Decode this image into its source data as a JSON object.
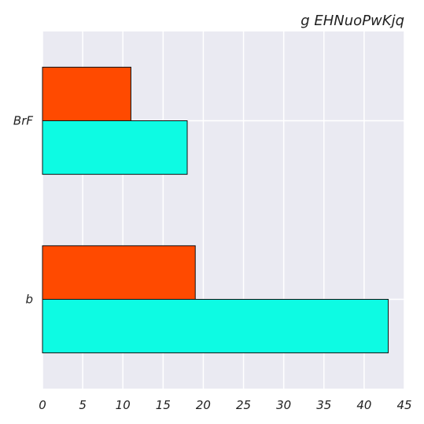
{
  "chart_data": {
    "type": "bar",
    "orientation": "horizontal",
    "title": "g EHNuoPwKjq",
    "xlabel": "",
    "ylabel": "",
    "categories": [
      "BrF",
      "b"
    ],
    "series": [
      {
        "values": [
          11,
          19
        ],
        "color": "#ff4a00"
      },
      {
        "values": [
          18,
          43
        ],
        "color": "#0dfbe3"
      }
    ],
    "xlim": [
      0,
      45
    ],
    "xticks": [
      0,
      5,
      10,
      15,
      20,
      25,
      30,
      35,
      40,
      45
    ],
    "grid": true,
    "legend": "none",
    "background": "#eaeaf2"
  }
}
